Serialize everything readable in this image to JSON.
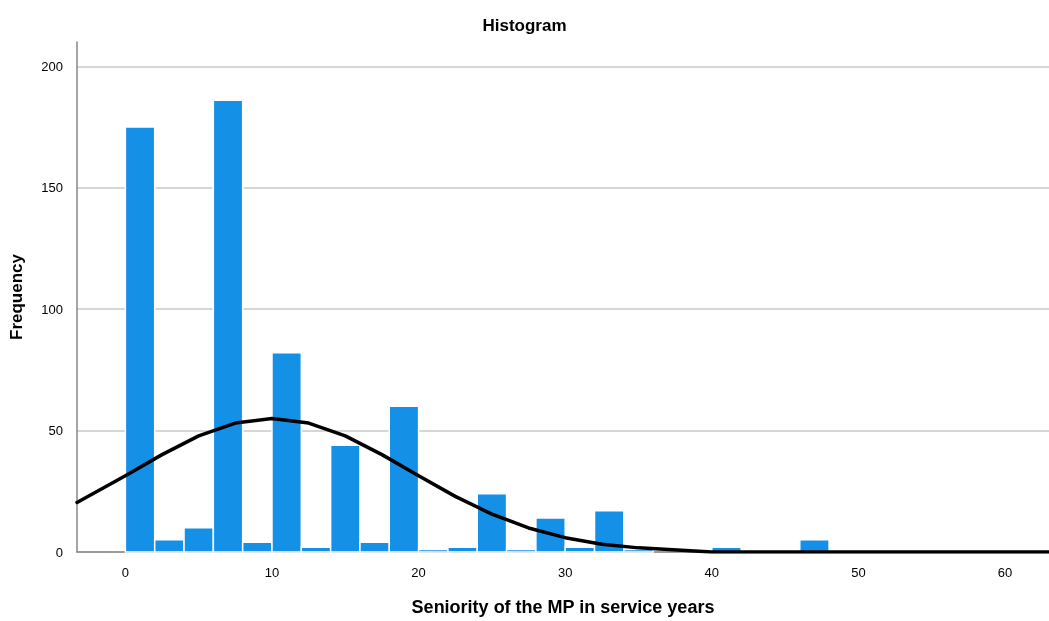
{
  "chart_data": {
    "type": "histogram",
    "title": "Histogram",
    "xlabel": "Seniority of the MP in service years",
    "ylabel": "Frequency",
    "bins": [
      0,
      2,
      4,
      6,
      8,
      10,
      12,
      14,
      16,
      18,
      20,
      22,
      24,
      26,
      28,
      30,
      32,
      34,
      36,
      38,
      40,
      42,
      44,
      46,
      48
    ],
    "values": [
      175,
      5,
      10,
      186,
      4,
      82,
      2,
      44,
      4,
      60,
      1,
      2,
      24,
      1,
      14,
      2,
      17,
      1,
      null,
      0,
      2,
      0,
      0,
      5
    ],
    "color": "#1490e6",
    "series": [
      {
        "type": "line",
        "color": "#000000",
        "x": [
          -3.3,
          0,
          2.5,
          5,
          7.5,
          10,
          12.5,
          15,
          17.5,
          20,
          22.5,
          25,
          27.5,
          30,
          32.5,
          35,
          40,
          45,
          50,
          55,
          63
        ],
        "values": [
          20.4,
          31.4,
          40.1,
          47.8,
          53.1,
          55,
          53.1,
          47.8,
          40.1,
          31.4,
          22.9,
          15.6,
          9.9,
          5.9,
          3.2,
          1.7,
          0,
          0,
          0,
          0,
          0
        ]
      }
    ],
    "xlim": [
      -3.3,
      63
    ],
    "xticks": [
      0,
      10,
      20,
      30,
      40,
      50,
      60
    ],
    "ylim": [
      0,
      210
    ],
    "yticks": [
      0,
      50,
      100,
      150,
      200
    ],
    "grid": "y",
    "marker": "none",
    "line_style": "solid"
  }
}
